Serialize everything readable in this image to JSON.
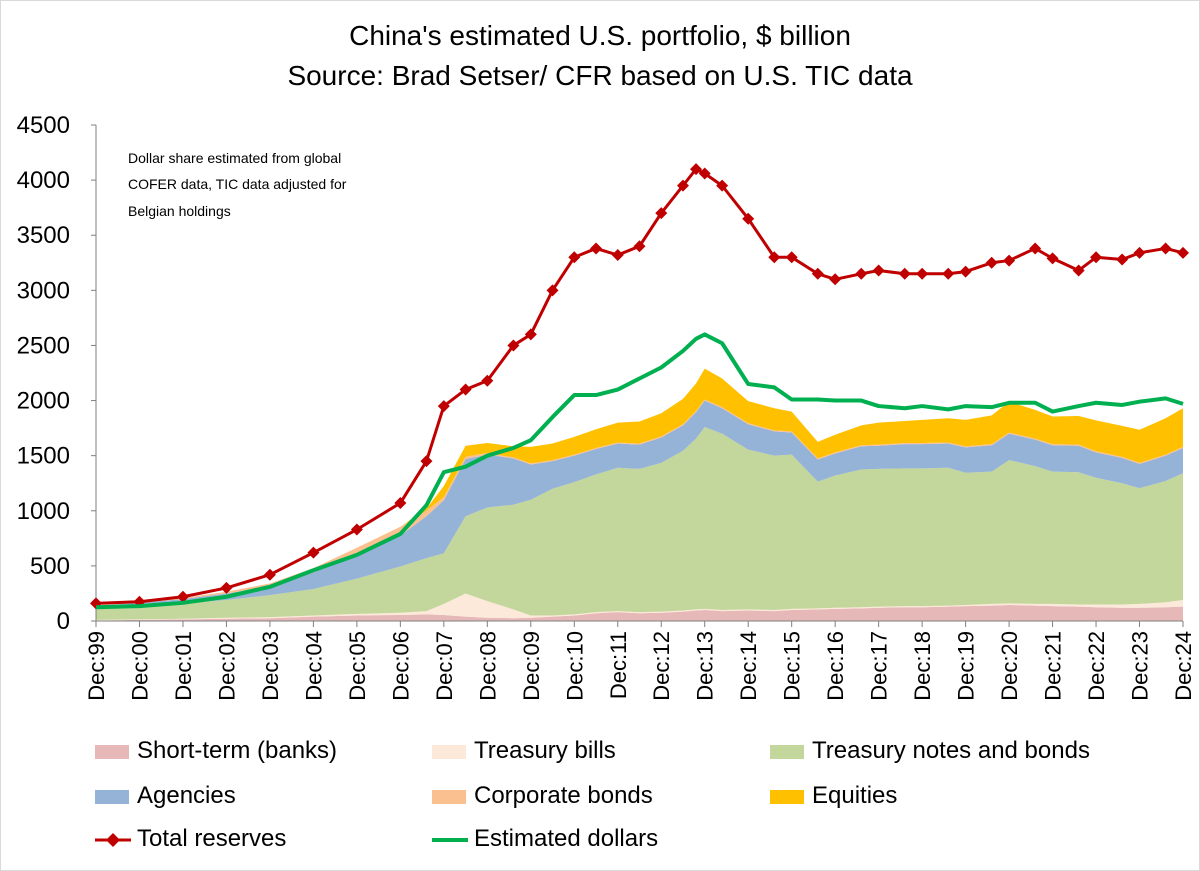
{
  "chart_data": {
    "type": "area",
    "title": "China's estimated U.S. portfolio, $ billion",
    "subtitle": "Source: Brad Setser/ CFR based on U.S. TIC data",
    "annotation": [
      "Dollar share estimated from global",
      "COFER data, TIC data adjusted for",
      "Belgian holdings"
    ],
    "xlabel": "",
    "ylabel": "",
    "ylim": [
      0,
      4500
    ],
    "yticks": [
      "0",
      "500",
      "1000",
      "1500",
      "2000",
      "2500",
      "3000",
      "3500",
      "4000",
      "4500"
    ],
    "xticks": [
      "Dec:99",
      "Dec:00",
      "Dec:01",
      "Dec:02",
      "Dec:03",
      "Dec:04",
      "Dec:05",
      "Dec:06",
      "Dec:07",
      "Dec:08",
      "Dec:09",
      "Dec:10",
      "Dec:11",
      "Dec:12",
      "Dec:13",
      "Dec:14",
      "Dec:15",
      "Dec:16",
      "Dec:17",
      "Dec:18",
      "Dec:19",
      "Dec:20",
      "Dec:21",
      "Dec:22",
      "Dec:23",
      "Dec:24"
    ],
    "x": [
      1999.9,
      2000.9,
      2001.9,
      2002.9,
      2003.9,
      2004.9,
      2005.9,
      2006.9,
      2007.5,
      2007.9,
      2008.4,
      2008.9,
      2009.5,
      2009.9,
      2010.4,
      2010.9,
      2011.4,
      2011.9,
      2012.4,
      2012.9,
      2013.4,
      2013.7,
      2013.9,
      2014.3,
      2014.9,
      2015.5,
      2015.9,
      2016.5,
      2016.9,
      2017.5,
      2017.9,
      2018.5,
      2018.9,
      2019.5,
      2019.9,
      2020.5,
      2020.9,
      2021.5,
      2021.9,
      2022.5,
      2022.9,
      2023.5,
      2023.9,
      2024.5,
      2024.9
    ],
    "series": [
      {
        "name": "Short-term (banks)",
        "kind": "area",
        "color": "#e6b9b8",
        "values": [
          5,
          10,
          15,
          20,
          25,
          40,
          50,
          55,
          60,
          55,
          40,
          30,
          25,
          30,
          40,
          50,
          70,
          80,
          70,
          75,
          85,
          95,
          100,
          90,
          95,
          90,
          100,
          105,
          110,
          115,
          120,
          125,
          125,
          130,
          135,
          140,
          145,
          140,
          135,
          130,
          125,
          120,
          120,
          125,
          130
        ]
      },
      {
        "name": "Treasury bills",
        "kind": "area",
        "color": "#fde9d9",
        "values": [
          5,
          5,
          5,
          10,
          10,
          10,
          15,
          20,
          30,
          100,
          210,
          150,
          80,
          20,
          10,
          10,
          10,
          10,
          10,
          10,
          10,
          10,
          10,
          10,
          10,
          10,
          10,
          10,
          10,
          10,
          10,
          10,
          10,
          10,
          10,
          15,
          15,
          15,
          20,
          20,
          25,
          30,
          35,
          45,
          60
        ]
      },
      {
        "name": "Treasury notes and bonds",
        "kind": "area",
        "color": "#c3d69b",
        "values": [
          110,
          120,
          140,
          160,
          200,
          240,
          320,
          420,
          480,
          460,
          700,
          850,
          950,
          1050,
          1150,
          1200,
          1250,
          1300,
          1300,
          1350,
          1450,
          1550,
          1650,
          1600,
          1450,
          1400,
          1400,
          1150,
          1200,
          1250,
          1250,
          1250,
          1250,
          1250,
          1200,
          1200,
          1300,
          1250,
          1200,
          1200,
          1150,
          1100,
          1050,
          1100,
          1150
        ]
      },
      {
        "name": "Agencies",
        "kind": "area",
        "color": "#95b3d7",
        "values": [
          20,
          30,
          40,
          60,
          80,
          150,
          220,
          280,
          380,
          480,
          520,
          480,
          420,
          320,
          250,
          240,
          230,
          220,
          220,
          230,
          230,
          240,
          240,
          230,
          230,
          220,
          200,
          200,
          200,
          210,
          210,
          220,
          220,
          220,
          230,
          240,
          240,
          240,
          240,
          240,
          230,
          230,
          220,
          230,
          230
        ]
      },
      {
        "name": "Corporate bonds",
        "kind": "area",
        "color": "#fac090",
        "values": [
          2,
          5,
          10,
          15,
          25,
          40,
          60,
          80,
          50,
          30,
          20,
          15,
          10,
          10,
          10,
          10,
          10,
          10,
          10,
          10,
          10,
          10,
          10,
          10,
          10,
          10,
          10,
          10,
          10,
          10,
          10,
          10,
          10,
          10,
          10,
          10,
          10,
          10,
          10,
          10,
          10,
          10,
          10,
          10,
          10
        ]
      },
      {
        "name": "Equities",
        "kind": "area",
        "color": "#ffc000",
        "values": [
          0,
          0,
          0,
          0,
          0,
          0,
          0,
          0,
          20,
          100,
          100,
          90,
          100,
          150,
          150,
          160,
          170,
          180,
          200,
          210,
          230,
          250,
          280,
          260,
          200,
          200,
          180,
          150,
          160,
          180,
          200,
          200,
          210,
          220,
          240,
          260,
          280,
          260,
          250,
          260,
          280,
          280,
          300,
          330,
          350
        ]
      },
      {
        "name": "Total reserves",
        "kind": "line-marker",
        "color": "#c00000",
        "values": [
          160,
          175,
          220,
          300,
          420,
          620,
          830,
          1070,
          1450,
          1950,
          2100,
          2180,
          2500,
          2600,
          3000,
          3300,
          3380,
          3320,
          3400,
          3700,
          3950,
          4100,
          4060,
          3950,
          3650,
          3300,
          3300,
          3150,
          3100,
          3150,
          3180,
          3150,
          3150,
          3150,
          3170,
          3250,
          3270,
          3380,
          3290,
          3180,
          3300,
          3280,
          3340,
          3380,
          3340
        ]
      },
      {
        "name": "Estimated dollars",
        "kind": "line",
        "color": "#00b050",
        "values": [
          125,
          135,
          165,
          220,
          310,
          460,
          600,
          790,
          1050,
          1350,
          1400,
          1500,
          1570,
          1640,
          1850,
          2050,
          2050,
          2100,
          2200,
          2300,
          2450,
          2560,
          2600,
          2520,
          2150,
          2120,
          2010,
          2010,
          2000,
          2000,
          1950,
          1930,
          1950,
          1920,
          1950,
          1940,
          1980,
          1980,
          1900,
          1950,
          1980,
          1960,
          1990,
          2020,
          1970
        ]
      }
    ],
    "legend": {
      "placement": "bottom"
    }
  }
}
